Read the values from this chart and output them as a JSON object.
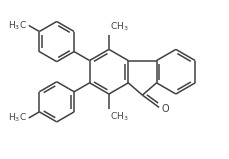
{
  "bg_color": "#ffffff",
  "line_color": "#404040",
  "line_width": 1.1,
  "font_size": 6.5,
  "fig_width": 2.29,
  "fig_height": 1.59,
  "dpi": 100,
  "xlim": [
    0,
    10
  ],
  "ylim": [
    0,
    7
  ]
}
